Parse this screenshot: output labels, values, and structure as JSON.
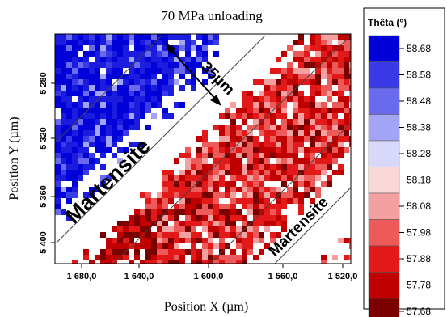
{
  "chart_data": {
    "type": "heatmap",
    "title": "70 MPa unloading",
    "xlabel": "Position X (µm)",
    "ylabel": "Position Y (µm)",
    "x_ticks": [
      "1 680,0",
      "1 640,0",
      "1 600,0",
      "1 560,0",
      "1 520,0"
    ],
    "y_ticks": [
      "5 280",
      "5 320",
      "5 360",
      "5 400"
    ],
    "xlim": [
      1690,
      1508
    ],
    "ylim": [
      5245,
      5420
    ],
    "colorbar": {
      "title": "Thêta (°)",
      "levels": [
        "58.68",
        "58.58",
        "58.48",
        "58.38",
        "58.28",
        "58.18",
        "58.08",
        "57.98",
        "57.88",
        "57.78",
        "57.68"
      ],
      "colors": [
        "#0000d8",
        "#3a3ae6",
        "#6a6aef",
        "#a4a4f6",
        "#d8d8fb",
        "#fbd8d8",
        "#f4a0a0",
        "#ec5a5a",
        "#e31818",
        "#c00000",
        "#7a0000"
      ]
    },
    "annotations": [
      "35µm",
      "Martensite",
      "Martensite"
    ],
    "regions": [
      {
        "label": "upper-left blue band",
        "theta_range": [
          58.48,
          58.68
        ]
      },
      {
        "label": "central red band",
        "theta_range": [
          57.78,
          58.18
        ]
      },
      {
        "label": "lower-right blue band",
        "theta_range": [
          58.28,
          58.68
        ]
      }
    ]
  }
}
